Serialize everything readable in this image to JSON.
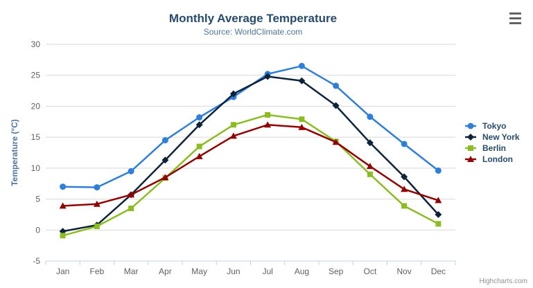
{
  "chart": {
    "credits": "Highcharts.com",
    "export_menu_icon": "hamburger-menu-icon"
  },
  "chart_data": {
    "type": "line",
    "title": "Monthly Average Temperature",
    "subtitle": "Source: WorldClimate.com",
    "xlabel": "",
    "ylabel": "Temperature (°C)",
    "categories": [
      "Jan",
      "Feb",
      "Mar",
      "Apr",
      "May",
      "Jun",
      "Jul",
      "Aug",
      "Sep",
      "Oct",
      "Nov",
      "Dec"
    ],
    "ylim": [
      -5,
      30
    ],
    "yticks": [
      -5,
      0,
      5,
      10,
      15,
      20,
      25,
      30
    ],
    "grid": true,
    "legend_position": "right",
    "series": [
      {
        "name": "Tokyo",
        "color": "#2f7ed8",
        "marker": "circle",
        "values": [
          7.0,
          6.9,
          9.5,
          14.5,
          18.2,
          21.5,
          25.2,
          26.5,
          23.3,
          18.3,
          13.9,
          9.6
        ]
      },
      {
        "name": "New York",
        "color": "#0d233a",
        "marker": "diamond",
        "values": [
          -0.2,
          0.8,
          5.7,
          11.3,
          17.0,
          22.0,
          24.8,
          24.1,
          20.1,
          14.1,
          8.6,
          2.5
        ]
      },
      {
        "name": "Berlin",
        "color": "#8bbc21",
        "marker": "square",
        "values": [
          -0.9,
          0.6,
          3.5,
          8.4,
          13.5,
          17.0,
          18.6,
          17.9,
          14.3,
          9.0,
          3.9,
          1.0
        ]
      },
      {
        "name": "London",
        "color": "#910000",
        "marker": "triangle",
        "values": [
          3.9,
          4.2,
          5.7,
          8.5,
          11.9,
          15.2,
          17.0,
          16.6,
          14.2,
          10.3,
          6.6,
          4.8
        ]
      }
    ],
    "style": {
      "title_color": "#274b6d",
      "subtitle_color": "#4d759e",
      "axis_title_color": "#4d759e",
      "axis_label_color": "#606060",
      "gridline_color": "#d8d8d8",
      "axis_line_color": "#c0d0e0",
      "legend_text_color": "#274b6d",
      "credits_color": "#909090"
    }
  }
}
